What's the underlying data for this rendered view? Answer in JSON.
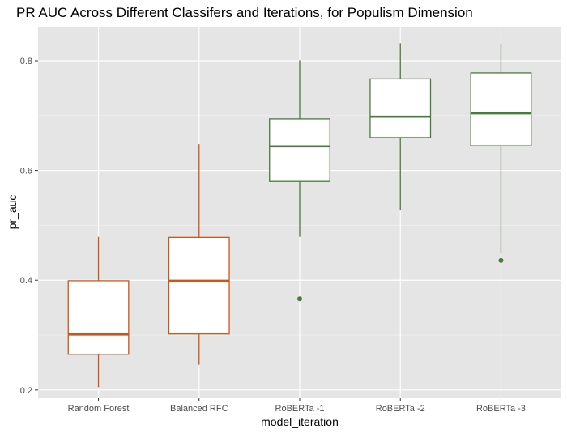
{
  "chart_data": {
    "type": "boxplot",
    "title": "PR AUC Across Different Classifers and Iterations, for Populism Dimension",
    "xlabel": "model_iteration",
    "ylabel": "pr_auc",
    "ylim": [
      0.185,
      0.862
    ],
    "y_ticks": [
      0.2,
      0.4,
      0.6,
      0.8
    ],
    "y_tick_labels": [
      "0.2",
      "0.4",
      "0.6",
      "0.8"
    ],
    "grid": true,
    "colors": {
      "panel": "#e5e5e5",
      "grid_major": "#ffffff",
      "box_fill": "#ffffff",
      "baseline_boxes": "#c9561a",
      "roberta_boxes": "#4a7a3c"
    },
    "categories": [
      "Random Forest",
      "Balanced RFC",
      "RoBERTa -1",
      "RoBERTa -2",
      "RoBERTa -3"
    ],
    "boxes": [
      {
        "category": "Random Forest",
        "whisker_low": 0.205,
        "q1": 0.265,
        "median": 0.301,
        "q3": 0.399,
        "whisker_high": 0.479,
        "outliers": [],
        "color": "#c9561a"
      },
      {
        "category": "Balanced RFC",
        "whisker_low": 0.246,
        "q1": 0.302,
        "median": 0.399,
        "q3": 0.478,
        "whisker_high": 0.648,
        "outliers": [],
        "color": "#c9561a"
      },
      {
        "category": "RoBERTa -1",
        "whisker_low": 0.479,
        "q1": 0.58,
        "median": 0.644,
        "q3": 0.694,
        "whisker_high": 0.801,
        "outliers": [
          0.366
        ],
        "color": "#4a7a3c"
      },
      {
        "category": "RoBERTa -2",
        "whisker_low": 0.527,
        "q1": 0.66,
        "median": 0.698,
        "q3": 0.767,
        "whisker_high": 0.832,
        "outliers": [],
        "color": "#4a7a3c"
      },
      {
        "category": "RoBERTa -3",
        "whisker_low": 0.45,
        "q1": 0.645,
        "median": 0.704,
        "q3": 0.778,
        "whisker_high": 0.831,
        "outliers": [
          0.436
        ],
        "color": "#4a7a3c"
      }
    ]
  }
}
